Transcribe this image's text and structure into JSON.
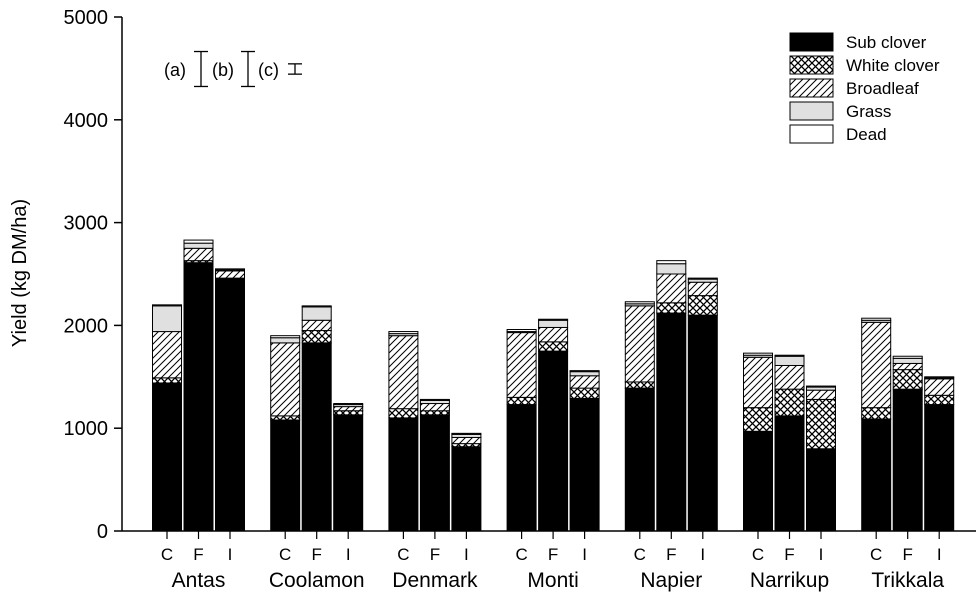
{
  "chart_data": {
    "type": "bar",
    "stacked": true,
    "ylabel": "Yield (kg DM/ha)",
    "ylim": [
      0,
      5000
    ],
    "yticks": [
      0,
      1000,
      2000,
      3000,
      4000,
      5000
    ],
    "groups": [
      "Antas",
      "Coolamon",
      "Denmark",
      "Monti",
      "Napier",
      "Narrikup",
      "Trikkala"
    ],
    "subcategories": [
      "C",
      "F",
      "I"
    ],
    "legend_position": "top-right",
    "series": [
      {
        "name": "Sub clover",
        "color": "#000000",
        "pattern": "solid",
        "values": [
          1440,
          2610,
          2450,
          1080,
          1830,
          1130,
          1100,
          1130,
          820,
          1230,
          1750,
          1290,
          1390,
          2120,
          2100,
          970,
          1120,
          800,
          1090,
          1380,
          1230
        ]
      },
      {
        "name": "White clover",
        "color": "#000000",
        "pattern": "crosshatch",
        "values": [
          50,
          20,
          10,
          40,
          120,
          40,
          90,
          40,
          30,
          70,
          90,
          100,
          60,
          100,
          190,
          230,
          260,
          480,
          110,
          190,
          90
        ]
      },
      {
        "name": "Broadleaf",
        "color": "#000000",
        "pattern": "diagonal",
        "values": [
          450,
          120,
          70,
          710,
          100,
          40,
          710,
          70,
          60,
          630,
          140,
          120,
          740,
          280,
          130,
          490,
          230,
          90,
          830,
          60,
          160
        ]
      },
      {
        "name": "Grass",
        "color": "#e0e0e0",
        "pattern": "solid",
        "values": [
          250,
          50,
          10,
          50,
          130,
          20,
          20,
          30,
          30,
          10,
          70,
          40,
          20,
          100,
          30,
          20,
          90,
          30,
          20,
          50,
          10
        ]
      },
      {
        "name": "Dead",
        "color": "#ffffff",
        "pattern": "solid",
        "values": [
          10,
          30,
          10,
          20,
          10,
          10,
          20,
          10,
          10,
          20,
          10,
          10,
          20,
          30,
          10,
          20,
          10,
          10,
          20,
          20,
          10
        ]
      }
    ],
    "error_bars": {
      "labels": [
        "(a)",
        "(b)",
        "(c)"
      ],
      "half_ranges": [
        170,
        170,
        50
      ]
    }
  }
}
